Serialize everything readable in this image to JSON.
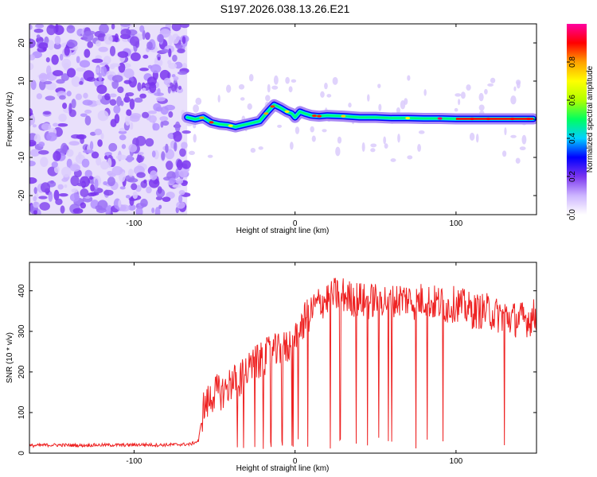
{
  "title": "S197.2026.038.13.26.E21",
  "chart_data": [
    {
      "type": "heatmap",
      "name": "spectrogram",
      "xlabel": "Height of straight line (km)",
      "ylabel": "Frequency (Hz)",
      "xlim": [
        -165,
        150
      ],
      "ylim": [
        -25,
        25
      ],
      "xticks": [
        -100,
        0,
        100
      ],
      "xtick_labels": [
        "-100",
        "0",
        "100"
      ],
      "yticks": [
        -20,
        -10,
        0,
        10,
        20
      ],
      "ytick_labels": [
        "-20",
        "-10",
        "0",
        "10",
        "20"
      ],
      "noise_region_x": [
        -165,
        -67
      ],
      "ridge": {
        "x": [
          -67,
          -62,
          -57,
          -52,
          -47,
          -42,
          -37,
          -32,
          -27,
          -22,
          -17,
          -13,
          -9,
          -5,
          -2,
          0,
          3,
          6,
          10,
          15,
          20,
          30,
          40,
          50,
          60,
          70,
          80,
          90,
          100,
          110,
          120,
          130,
          140,
          148
        ],
        "y": [
          0.5,
          0.0,
          0.5,
          -0.8,
          -1.3,
          -1.5,
          -2.0,
          -1.5,
          -1.0,
          -0.5,
          2.0,
          3.8,
          3.0,
          2.0,
          1.5,
          0.5,
          2.0,
          1.5,
          1.0,
          0.8,
          1.0,
          0.8,
          0.5,
          0.5,
          0.3,
          0.3,
          0.2,
          0.2,
          0.1,
          0.1,
          0.1,
          0.1,
          0.1,
          0.1
        ]
      },
      "colorbar": {
        "label": "Normalized spectral amplitude",
        "range": [
          0,
          1
        ],
        "ticks": [
          0.0,
          0.2,
          0.4,
          0.6,
          0.8
        ],
        "tick_labels": [
          "0.0",
          "0.2",
          "0.4",
          "0.6",
          "0.8"
        ],
        "colors": [
          "#ffffff",
          "#cdb5ff",
          "#7a35ef",
          "#0000ff",
          "#00d0ff",
          "#00ff60",
          "#b0ff00",
          "#ffff00",
          "#ffa000",
          "#ff0000",
          "#ff00a0"
        ]
      }
    },
    {
      "type": "line",
      "name": "snr",
      "xlabel": "Height of straight line (km)",
      "ylabel": "SNR (10 * v/v)",
      "xlim": [
        -165,
        150
      ],
      "ylim": [
        0,
        470
      ],
      "xticks": [
        -100,
        0,
        100
      ],
      "xtick_labels": [
        "-100",
        "0",
        "100"
      ],
      "yticks": [
        0,
        100,
        200,
        300,
        400
      ],
      "ytick_labels": [
        "0",
        "100",
        "200",
        "300",
        "400"
      ],
      "color": "#ee2222",
      "series": [
        {
          "name": "SNR",
          "x": [
            -165,
            -155,
            -145,
            -135,
            -125,
            -115,
            -105,
            -95,
            -85,
            -75,
            -65,
            -60,
            -57,
            -55,
            -50,
            -45,
            -40,
            -35,
            -30,
            -25,
            -20,
            -15,
            -10,
            -5,
            0,
            5,
            10,
            15,
            20,
            25,
            30,
            35,
            40,
            45,
            50,
            55,
            60,
            65,
            70,
            75,
            80,
            85,
            90,
            95,
            100,
            105,
            110,
            115,
            120,
            125,
            130,
            135,
            140,
            145,
            150
          ],
          "y": [
            18,
            20,
            20,
            19,
            20,
            20,
            20,
            21,
            20,
            21,
            22,
            30,
            110,
            120,
            150,
            150,
            170,
            180,
            200,
            220,
            230,
            250,
            250,
            260,
            280,
            320,
            350,
            370,
            380,
            390,
            390,
            380,
            380,
            370,
            380,
            380,
            370,
            380,
            380,
            370,
            380,
            370,
            370,
            360,
            370,
            360,
            350,
            350,
            350,
            340,
            340,
            330,
            330,
            330,
            340
          ]
        }
      ],
      "dropouts_x": [
        -32,
        -25,
        -15,
        -8,
        -2,
        2,
        8,
        22,
        28,
        38,
        45,
        52,
        58,
        60,
        75,
        82,
        92,
        130
      ]
    }
  ]
}
